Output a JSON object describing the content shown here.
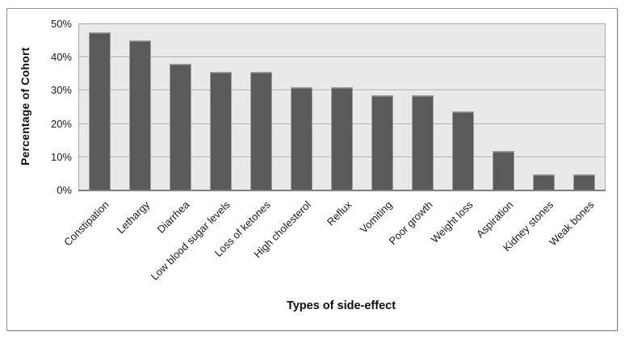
{
  "chart_data": {
    "type": "bar",
    "title": "",
    "categories": [
      "Constipation",
      "Lethargy",
      "Diarrhea",
      "Low blood sugar levels",
      "Loss of ketones",
      "High cholesterol",
      "Reflux",
      "Vomiting",
      "Poor growth",
      "Weight loss",
      "Aspiration",
      "Kidney stones",
      "Weak bones"
    ],
    "values": [
      47.6,
      45.2,
      38.1,
      35.7,
      35.7,
      31.0,
      31.0,
      28.6,
      28.6,
      23.8,
      11.9,
      4.8,
      4.8
    ],
    "xlabel": "Types of side-effect",
    "ylabel": "Percentage of Cohort",
    "ylim": [
      0,
      50
    ],
    "ytick_step": 10,
    "ytick_labels": [
      "0%",
      "10%",
      "20%",
      "30%",
      "40%",
      "50%"
    ],
    "grid": true,
    "legend_position": "none",
    "colors": {
      "bar_fill": "#5a5a5a",
      "bar_border": "#a0a0a0",
      "plot_background": "#e9e9e9",
      "gridline": "#a9a9a9",
      "frame_border": "#919191",
      "axis_line": "#7f7f7f"
    }
  }
}
